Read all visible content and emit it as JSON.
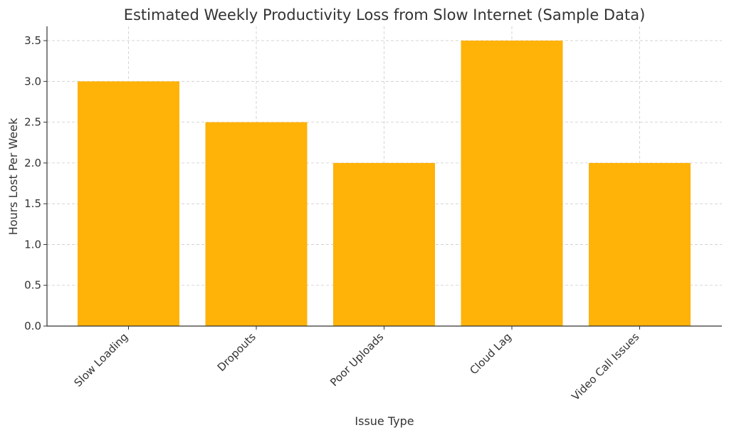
{
  "chart_data": {
    "type": "bar",
    "title": "Estimated Weekly Productivity Loss from Slow Internet (Sample Data)",
    "xlabel": "Issue Type",
    "ylabel": "Hours Lost Per Week",
    "categories": [
      "Slow Loading",
      "Dropouts",
      "Poor Uploads",
      "Cloud Lag",
      "Video Call Issues"
    ],
    "values": [
      3.0,
      2.5,
      2.0,
      3.5,
      2.0
    ],
    "ylim": [
      0,
      3.675
    ],
    "yticks": [
      "0.0",
      "0.5",
      "1.0",
      "1.5",
      "2.0",
      "2.5",
      "3.0",
      "3.5"
    ],
    "grid": true,
    "bar_color": "#FFB000"
  }
}
